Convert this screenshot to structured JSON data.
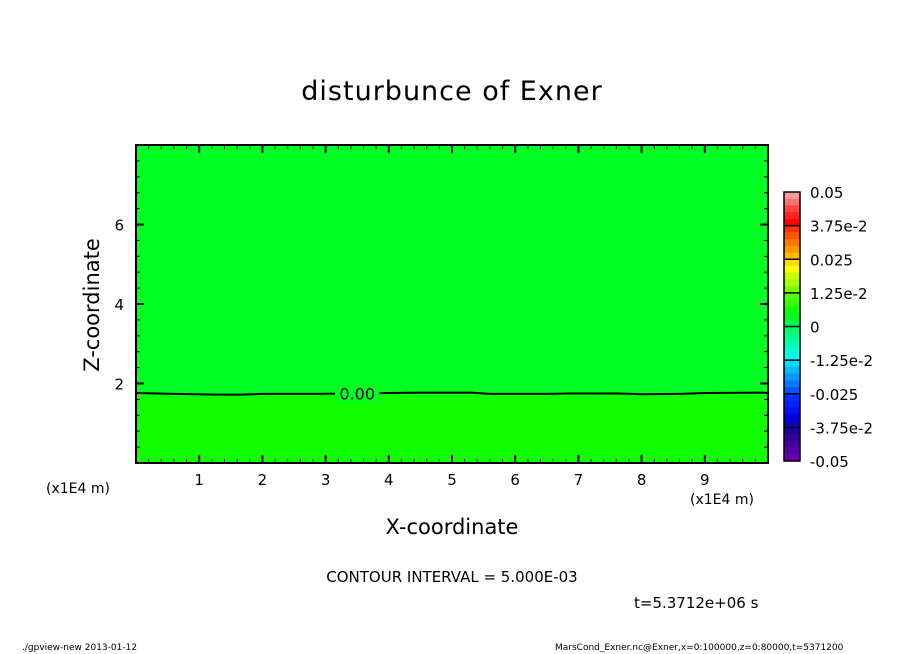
{
  "chart_data": {
    "type": "heatmap",
    "title": "disturbunce of Exner",
    "xlabel": "X-coordinate",
    "ylabel": "Z-coordinate",
    "x_unit": "(x1E4 m)",
    "y_unit": "(x1E4 m)",
    "xlim": [
      0,
      10
    ],
    "ylim": [
      0,
      8
    ],
    "xticks": [
      1,
      2,
      3,
      4,
      5,
      6,
      7,
      8,
      9
    ],
    "yticks": [
      2,
      4,
      6
    ],
    "regions": [
      {
        "range": [
          0,
          0.005
        ],
        "z_from": 1.75,
        "z_to": 8,
        "color": "#00ff22"
      },
      {
        "range": [
          -0.005,
          0
        ],
        "z_from": 0,
        "z_to": 1.75,
        "color": "#11ff00"
      }
    ],
    "contour": {
      "label": "0.00",
      "points": [
        [
          0,
          1.76
        ],
        [
          0.6,
          1.74
        ],
        [
          1.3,
          1.72
        ],
        [
          1.7,
          1.72
        ],
        [
          2,
          1.74
        ],
        [
          2.9,
          1.74
        ],
        [
          3.3,
          1.75
        ],
        [
          4,
          1.76
        ],
        [
          4.5,
          1.77
        ],
        [
          5.3,
          1.77
        ],
        [
          5.6,
          1.74
        ],
        [
          6.5,
          1.74
        ],
        [
          6.9,
          1.75
        ],
        [
          7.6,
          1.75
        ],
        [
          8,
          1.73
        ],
        [
          8.6,
          1.74
        ],
        [
          9,
          1.76
        ],
        [
          9.9,
          1.77
        ],
        [
          10,
          1.76
        ]
      ]
    },
    "colorbar": {
      "ticks": [
        "0.05",
        "3.75e-2",
        "0.025",
        "1.25e-2",
        "0",
        "-1.25e-2",
        "-0.025",
        "-3.75e-2",
        "-0.05"
      ],
      "colors": [
        "#ff9999",
        "#ff7070",
        "#ff4444",
        "#ff2222",
        "#ff0000",
        "#ff3300",
        "#ff5500",
        "#ff7700",
        "#ff9900",
        "#ffbb00",
        "#ffdd00",
        "#ffff00",
        "#ccff00",
        "#aaff00",
        "#77ff00",
        "#55ff00",
        "#33ff00",
        "#11ff00",
        "#00ff22",
        "#00ff44",
        "#00ff66",
        "#00ff88",
        "#00ffaa",
        "#00ffcc",
        "#00ffee",
        "#00ddff",
        "#00bbff",
        "#0099ff",
        "#0077ff",
        "#0055ff",
        "#0033ff",
        "#0022ff",
        "#0011ee",
        "#0000dd",
        "#1100bb",
        "#220099",
        "#330099",
        "#440099",
        "#5500aa",
        "#6600aa"
      ]
    },
    "contour_interval": "CONTOUR INTERVAL = 5.000E-03",
    "time_label": "t=5.3712e+06 s"
  },
  "footer": {
    "left": "./gpview-new  2013-01-12",
    "right": "MarsCond_Exner.nc@Exner,x=0:100000,z=0:80000,t=5371200"
  }
}
